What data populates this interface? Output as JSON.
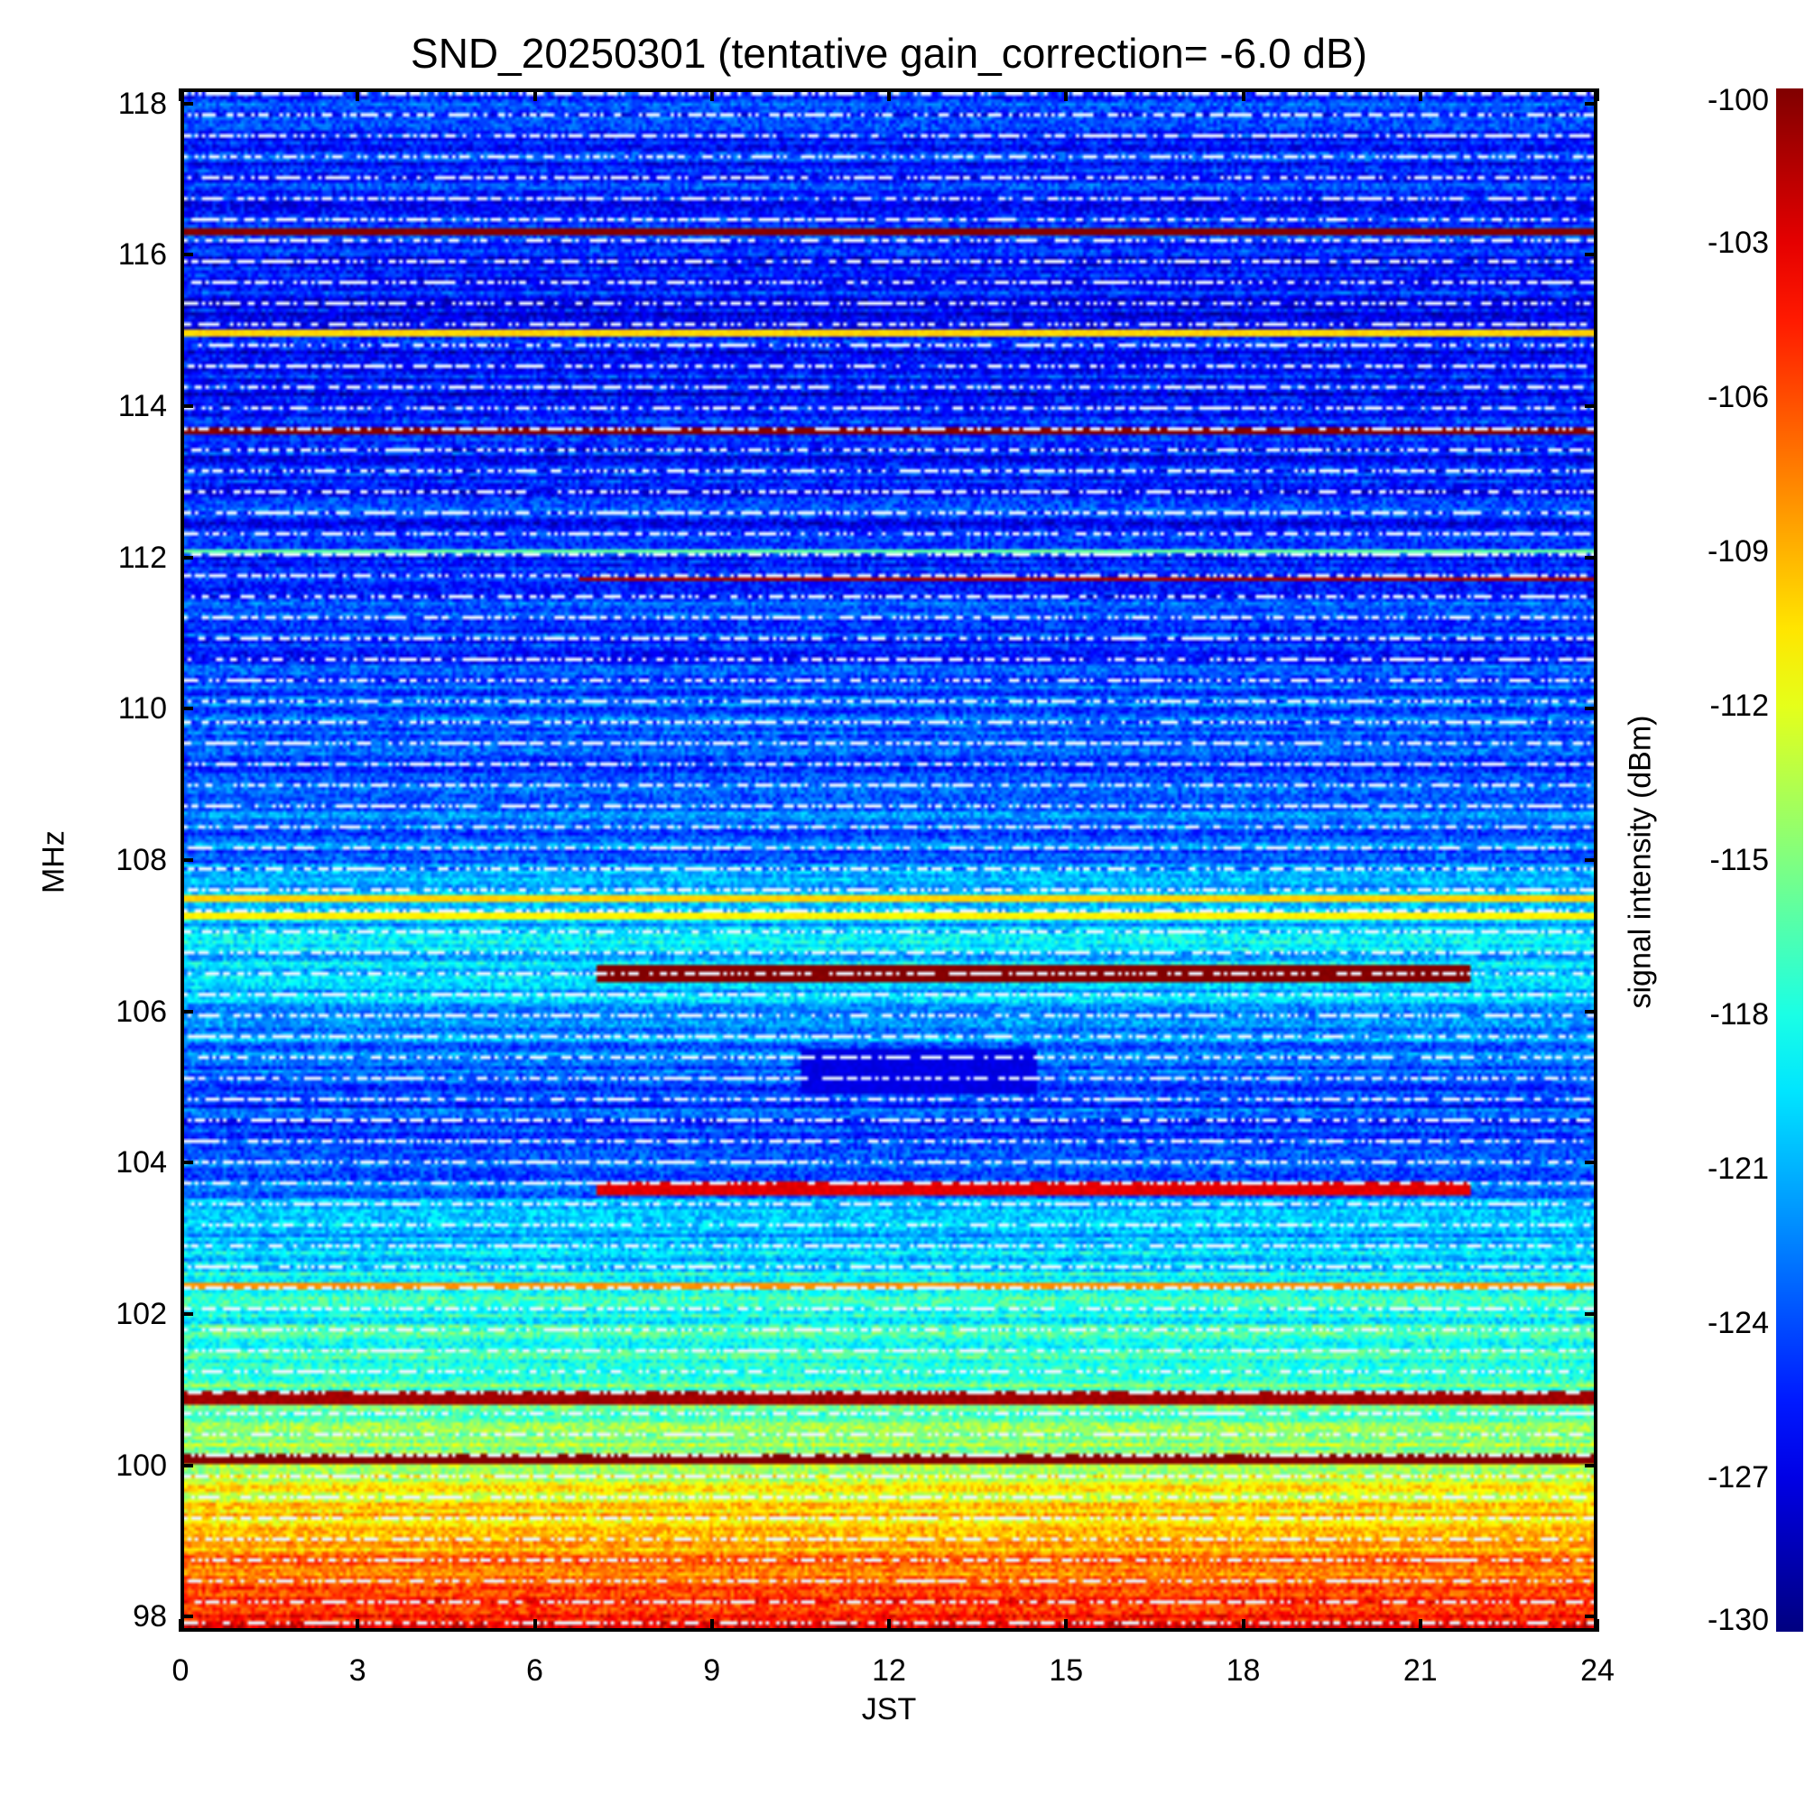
{
  "chart_data": {
    "type": "heatmap",
    "title": "SND_20250301 (tentative gain_correction= -6.0 dB)",
    "xlabel": "JST",
    "ylabel": "MHz",
    "colorbar_label": "signal intensity (dBm)",
    "xlim": [
      0,
      24
    ],
    "ylim": [
      97.8,
      118.2
    ],
    "x_ticks": [
      "0",
      "3",
      "6",
      "9",
      "12",
      "15",
      "18",
      "21",
      "24"
    ],
    "y_ticks": [
      "98",
      "100",
      "102",
      "104",
      "106",
      "108",
      "110",
      "112",
      "114",
      "116",
      "118"
    ],
    "colorbar_ticks": [
      "-100",
      "-103",
      "-106",
      "-109",
      "-112",
      "-115",
      "-118",
      "-121",
      "-124",
      "-127",
      "-130"
    ],
    "colorbar_range": [
      -130,
      -100
    ],
    "colormap": "jet",
    "background_profile": [
      {
        "mhz": 97.8,
        "dbm": -104.5
      },
      {
        "mhz": 98.3,
        "dbm": -106
      },
      {
        "mhz": 98.8,
        "dbm": -108
      },
      {
        "mhz": 99.5,
        "dbm": -111
      },
      {
        "mhz": 100.5,
        "dbm": -115
      },
      {
        "mhz": 101.5,
        "dbm": -117
      },
      {
        "mhz": 102.3,
        "dbm": -118.5
      },
      {
        "mhz": 103.0,
        "dbm": -121
      },
      {
        "mhz": 103.7,
        "dbm": -122.5
      },
      {
        "mhz": 104.3,
        "dbm": -125
      },
      {
        "mhz": 105.0,
        "dbm": -124
      },
      {
        "mhz": 106.0,
        "dbm": -121
      },
      {
        "mhz": 107.0,
        "dbm": -120
      },
      {
        "mhz": 108.0,
        "dbm": -123
      },
      {
        "mhz": 110.0,
        "dbm": -124
      },
      {
        "mhz": 112.0,
        "dbm": -125
      },
      {
        "mhz": 114.0,
        "dbm": -126
      },
      {
        "mhz": 118.2,
        "dbm": -125
      }
    ],
    "bands": [
      {
        "mhz": 116.35,
        "width": 0.1,
        "t_start": 0,
        "t_end": 24,
        "dbm": -100
      },
      {
        "mhz": 115.0,
        "width": 0.05,
        "t_start": 0,
        "t_end": 24,
        "dbm": -110
      },
      {
        "mhz": 113.7,
        "width": 0.06,
        "t_start": 0,
        "t_end": 24,
        "dbm": -100
      },
      {
        "mhz": 112.1,
        "width": 0.06,
        "t_start": 0,
        "t_end": 24,
        "dbm": -116
      },
      {
        "mhz": 111.75,
        "width": 0.04,
        "t_start": 6.7,
        "t_end": 24,
        "dbm": -101
      },
      {
        "mhz": 107.5,
        "width": 0.1,
        "t_start": 0,
        "t_end": 24,
        "dbm": -110
      },
      {
        "mhz": 107.25,
        "width": 0.08,
        "t_start": 0,
        "t_end": 24,
        "dbm": -111
      },
      {
        "mhz": 106.5,
        "width": 0.2,
        "t_start": 7,
        "t_end": 21.9,
        "dbm": -100
      },
      {
        "mhz": 105.2,
        "width": 0.6,
        "t_start": 10.5,
        "t_end": 14.5,
        "dbm": -127
      },
      {
        "mhz": 103.65,
        "width": 0.2,
        "t_start": 7,
        "t_end": 21.9,
        "dbm": -103
      },
      {
        "mhz": 102.35,
        "width": 0.06,
        "t_start": 0,
        "t_end": 24,
        "dbm": -108
      },
      {
        "mhz": 100.85,
        "width": 0.2,
        "t_start": 0,
        "t_end": 24,
        "dbm": -101
      },
      {
        "mhz": 100.05,
        "width": 0.1,
        "t_start": 0,
        "t_end": 24,
        "dbm": -100
      }
    ]
  }
}
